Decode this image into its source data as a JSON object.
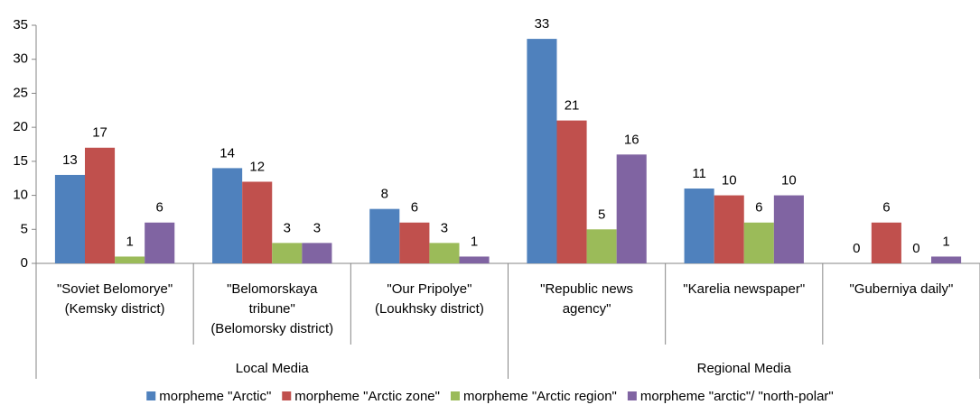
{
  "chart_data": {
    "type": "bar",
    "groups": [
      {
        "name": "Local Media",
        "categories": [
          [
            "\"Soviet Belomorye\"",
            "(Kemsky district)"
          ],
          [
            "\"Belomorskaya",
            "tribune\"",
            "(Belomorsky district)"
          ],
          [
            "\"Our Pripolye\"",
            "(Loukhsky district)"
          ]
        ]
      },
      {
        "name": "Regional Media",
        "categories": [
          [
            "\"Republic news",
            "agency\""
          ],
          [
            "\"Karelia newspaper\""
          ],
          [
            "\"Guberniya daily\""
          ]
        ]
      }
    ],
    "series": [
      {
        "name": "morpheme \"Arctic\"",
        "color": "#4f81bd",
        "values": [
          13,
          14,
          8,
          33,
          11,
          0
        ]
      },
      {
        "name": "morpheme \"Arctic zone\"",
        "color": "#c0504d",
        "values": [
          17,
          12,
          6,
          21,
          10,
          6
        ]
      },
      {
        "name": "morpheme \"Arctic region\"",
        "color": "#9bbb59",
        "values": [
          1,
          3,
          3,
          5,
          6,
          0
        ]
      },
      {
        "name": "morpheme \"arctic\"/ \"north-polar\"",
        "color": "#8064a2",
        "values": [
          6,
          3,
          1,
          16,
          10,
          1
        ]
      }
    ],
    "ylim": [
      0,
      35
    ],
    "yticks": [
      0,
      5,
      10,
      15,
      20,
      25,
      30,
      35
    ],
    "legend": "bottom",
    "grid": false
  }
}
